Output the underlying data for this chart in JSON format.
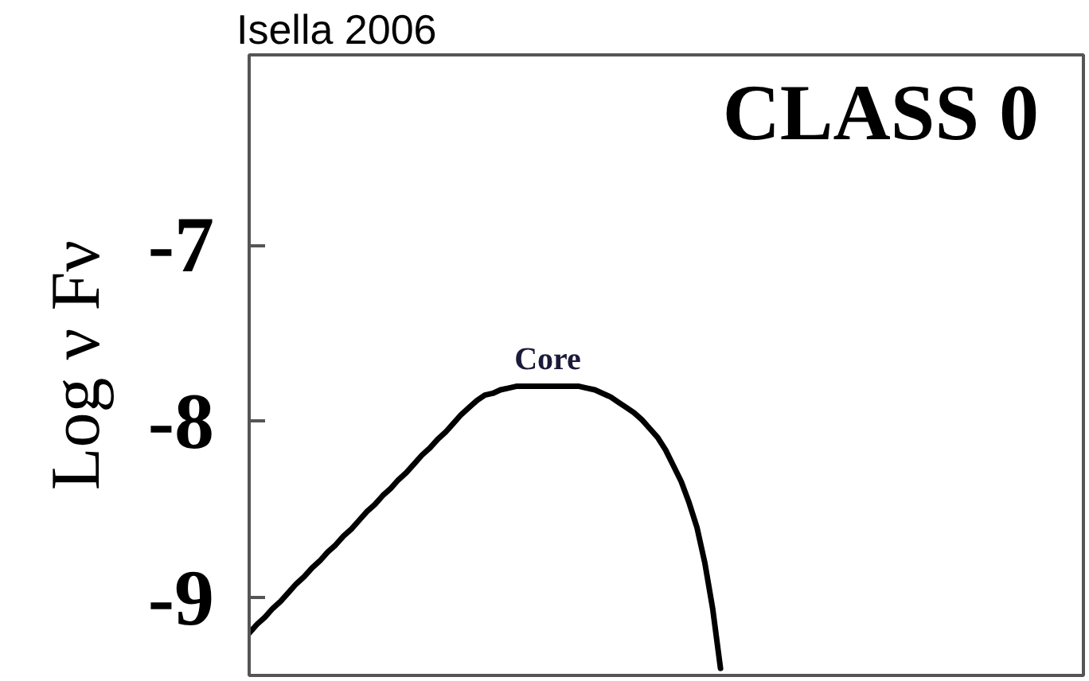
{
  "chart_data": {
    "type": "line",
    "title": "CLASS 0",
    "ylabel": "Log ν Fν",
    "categories": [
      null,
      null,
      null,
      null,
      null,
      null,
      null,
      null,
      null,
      null,
      null,
      null,
      null,
      null,
      null,
      null,
      null,
      null,
      null,
      null,
      null,
      null,
      null,
      null,
      null,
      null,
      null,
      null,
      null,
      null,
      null,
      null,
      null,
      null,
      null,
      null,
      null,
      null,
      null,
      null,
      null,
      null,
      null,
      null,
      null,
      null,
      null,
      null,
      null,
      null,
      null,
      null,
      null,
      null,
      null,
      null,
      null,
      null,
      null,
      null,
      null
    ],
    "values": [
      -9.2,
      -9.15,
      -9.11,
      -9.06,
      -9.02,
      -8.97,
      -8.92,
      -8.88,
      -8.83,
      -8.79,
      -8.74,
      -8.7,
      -8.65,
      -8.61,
      -8.56,
      -8.51,
      -8.47,
      -8.42,
      -8.38,
      -8.33,
      -8.29,
      -8.24,
      -8.19,
      -8.15,
      -8.1,
      -8.06,
      -8.01,
      -7.96,
      -7.92,
      -7.88,
      -7.85,
      -7.84,
      -7.82,
      -7.81,
      -7.8,
      -7.8,
      -7.8,
      -7.8,
      -7.8,
      -7.8,
      -7.8,
      -7.8,
      -7.8,
      -7.81,
      -7.82,
      -7.84,
      -7.86,
      -7.89,
      -7.92,
      -7.95,
      -7.99,
      -8.04,
      -8.09,
      -8.16,
      -8.25,
      -8.34,
      -8.46,
      -8.6,
      -8.8,
      -9.06,
      -9.4
    ],
    "color": "#000000",
    "ylim": [
      -9.44,
      -5.92
    ],
    "yticks": [
      -9,
      -8,
      -7
    ],
    "tick_labels": "y",
    "annotations": [
      "Isella 2006",
      "Core"
    ]
  }
}
